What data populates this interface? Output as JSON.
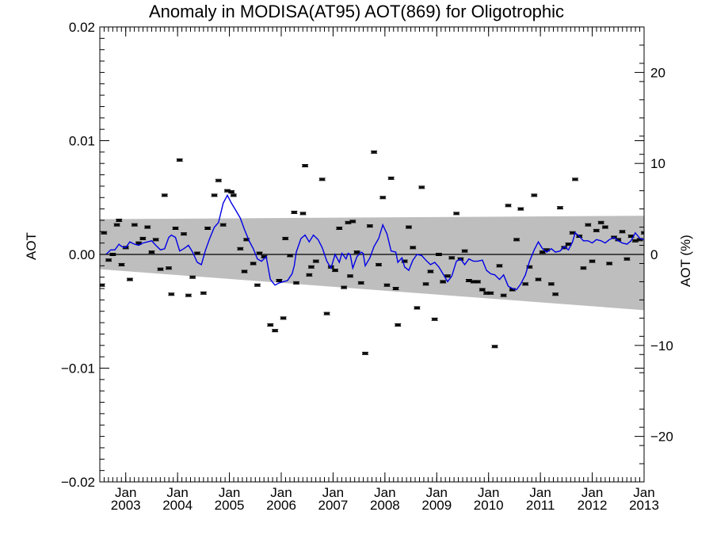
{
  "chart_data": {
    "type": "line",
    "title": "Anomaly in MODISA(AT95) AOT(869) for Oligotrophic",
    "ylabel": "AOT",
    "ylabel_right": "AOT (%)",
    "xlim": [
      2002.5,
      2013.0
    ],
    "ylim": [
      -0.02,
      0.02
    ],
    "ylim_right": [
      -25,
      25
    ],
    "y_ticks": [
      {
        "value": -0.02,
        "label": "−0.02"
      },
      {
        "value": -0.01,
        "label": "−0.01"
      },
      {
        "value": 0.0,
        "label": "0.00"
      },
      {
        "value": 0.01,
        "label": "0.01"
      },
      {
        "value": 0.02,
        "label": "0.02"
      }
    ],
    "y_right_ticks": [
      {
        "value": -20,
        "label": "−20"
      },
      {
        "value": -10,
        "label": "−10"
      },
      {
        "value": 0,
        "label": "0"
      },
      {
        "value": 10,
        "label": "10"
      },
      {
        "value": 20,
        "label": "20"
      }
    ],
    "x_ticks": [
      {
        "value": 2003.0,
        "month": "Jan",
        "year": "2003"
      },
      {
        "value": 2004.0,
        "month": "Jan",
        "year": "2004"
      },
      {
        "value": 2005.0,
        "month": "Jan",
        "year": "2005"
      },
      {
        "value": 2006.0,
        "month": "Jan",
        "year": "2006"
      },
      {
        "value": 2007.0,
        "month": "Jan",
        "year": "2007"
      },
      {
        "value": 2008.0,
        "month": "Jan",
        "year": "2008"
      },
      {
        "value": 2009.0,
        "month": "Jan",
        "year": "2009"
      },
      {
        "value": 2010.0,
        "month": "Jan",
        "year": "2010"
      },
      {
        "value": 2011.0,
        "month": "Jan",
        "year": "2011"
      },
      {
        "value": 2012.0,
        "month": "Jan",
        "year": "2012"
      },
      {
        "value": 2013.0,
        "month": "Jan",
        "year": "2013"
      }
    ],
    "band": {
      "x": [
        2002.5,
        2013.0
      ],
      "upper": [
        0.0031,
        0.0034
      ],
      "lower": [
        -0.0013,
        -0.0049
      ],
      "color": "#bebebe"
    },
    "zero_line": 0.0,
    "series": [
      {
        "style": "points-with-errorbars",
        "color": "#000000",
        "points": [
          [
            2002.54,
            -0.0027
          ],
          [
            2002.58,
            0.0019
          ],
          [
            2002.67,
            -0.0005
          ],
          [
            2002.75,
            0.0
          ],
          [
            2002.83,
            0.0026
          ],
          [
            2002.87,
            0.003
          ],
          [
            2002.92,
            -0.0009
          ],
          [
            2003.0,
            0.0006
          ],
          [
            2003.08,
            -0.0022
          ],
          [
            2003.17,
            0.0026
          ],
          [
            2003.25,
            0.001
          ],
          [
            2003.33,
            0.0014
          ],
          [
            2003.42,
            0.0024
          ],
          [
            2003.5,
            0.0002
          ],
          [
            2003.58,
            0.0013
          ],
          [
            2003.67,
            -0.0013
          ],
          [
            2003.75,
            0.0052
          ],
          [
            2003.83,
            -0.0012
          ],
          [
            2003.88,
            -0.0035
          ],
          [
            2003.96,
            0.0023
          ],
          [
            2004.04,
            0.0083
          ],
          [
            2004.12,
            0.0018
          ],
          [
            2004.21,
            -0.0036
          ],
          [
            2004.29,
            -0.002
          ],
          [
            2004.38,
            0.0001
          ],
          [
            2004.5,
            -0.0034
          ],
          [
            2004.58,
            0.0023
          ],
          [
            2004.71,
            0.0052
          ],
          [
            2004.79,
            0.0065
          ],
          [
            2004.88,
            0.0026
          ],
          [
            2004.96,
            0.0056
          ],
          [
            2005.04,
            0.0055
          ],
          [
            2005.08,
            0.0052
          ],
          [
            2005.21,
            0.0005
          ],
          [
            2005.29,
            -0.0015
          ],
          [
            2005.33,
            0.0013
          ],
          [
            2005.46,
            -0.0008
          ],
          [
            2005.54,
            -0.0027
          ],
          [
            2005.58,
            0.0001
          ],
          [
            2005.67,
            -0.0002
          ],
          [
            2005.79,
            -0.0062
          ],
          [
            2005.88,
            -0.0067
          ],
          [
            2005.96,
            -0.0023
          ],
          [
            2006.04,
            -0.0056
          ],
          [
            2006.08,
            0.0014
          ],
          [
            2006.17,
            -0.0001
          ],
          [
            2006.25,
            0.0037
          ],
          [
            2006.29,
            -0.0025
          ],
          [
            2006.42,
            0.0036
          ],
          [
            2006.46,
            0.0078
          ],
          [
            2006.54,
            -0.0018
          ],
          [
            2006.58,
            -0.0011
          ],
          [
            2006.67,
            -0.0006
          ],
          [
            2006.79,
            0.0066
          ],
          [
            2006.88,
            -0.0052
          ],
          [
            2006.96,
            -0.0011
          ],
          [
            2007.04,
            -0.0014
          ],
          [
            2007.12,
            0.0023
          ],
          [
            2007.21,
            -0.0029
          ],
          [
            2007.29,
            0.0028
          ],
          [
            2007.38,
            0.0029
          ],
          [
            2007.46,
            0.0002
          ],
          [
            2007.33,
            -0.0019
          ],
          [
            2007.54,
            -0.0025
          ],
          [
            2007.62,
            -0.0087
          ],
          [
            2007.71,
            0.0025
          ],
          [
            2007.79,
            0.009
          ],
          [
            2007.88,
            -0.0009
          ],
          [
            2007.96,
            0.005
          ],
          [
            2008.04,
            -0.0027
          ],
          [
            2008.12,
            0.0067
          ],
          [
            2008.21,
            -0.003
          ],
          [
            2008.25,
            -0.0062
          ],
          [
            2008.38,
            -0.0006
          ],
          [
            2008.46,
            0.0024
          ],
          [
            2008.54,
            0.0006
          ],
          [
            2008.62,
            -0.0047
          ],
          [
            2008.71,
            0.0059
          ],
          [
            2008.79,
            -0.0026
          ],
          [
            2008.88,
            -0.0015
          ],
          [
            2008.96,
            -0.0057
          ],
          [
            2009.04,
            0.0
          ],
          [
            2009.12,
            -0.0024
          ],
          [
            2009.21,
            -0.0019
          ],
          [
            2009.29,
            -0.0003
          ],
          [
            2009.38,
            0.0036
          ],
          [
            2009.46,
            -0.0004
          ],
          [
            2009.54,
            0.0003
          ],
          [
            2009.62,
            -0.0023
          ],
          [
            2009.71,
            -0.0024
          ],
          [
            2009.79,
            -0.0024
          ],
          [
            2009.88,
            -0.0031
          ],
          [
            2009.96,
            -0.0034
          ],
          [
            2010.04,
            -0.0034
          ],
          [
            2010.12,
            -0.0081
          ],
          [
            2010.21,
            -0.001
          ],
          [
            2010.29,
            -0.0036
          ],
          [
            2010.38,
            0.0043
          ],
          [
            2010.46,
            -0.0031
          ],
          [
            2010.54,
            0.0013
          ],
          [
            2010.62,
            0.004
          ],
          [
            2010.71,
            -0.0026
          ],
          [
            2010.79,
            -0.0011
          ],
          [
            2010.88,
            0.0052
          ],
          [
            2010.96,
            -0.0022
          ],
          [
            2011.04,
            0.0002
          ],
          [
            2011.12,
            0.0004
          ],
          [
            2011.21,
            -0.0026
          ],
          [
            2011.29,
            -0.0035
          ],
          [
            2011.38,
            0.0041
          ],
          [
            2011.46,
            0.0006
          ],
          [
            2011.54,
            0.0009
          ],
          [
            2011.62,
            0.0019
          ],
          [
            2011.67,
            0.0066
          ],
          [
            2011.75,
            0.0016
          ],
          [
            2011.83,
            -0.0012
          ],
          [
            2011.92,
            0.0026
          ],
          [
            2012.0,
            -0.0006
          ],
          [
            2012.08,
            0.0021
          ],
          [
            2012.17,
            0.0028
          ],
          [
            2012.25,
            0.0024
          ],
          [
            2012.33,
            -0.0008
          ],
          [
            2012.42,
            0.0015
          ],
          [
            2012.5,
            0.0013
          ],
          [
            2012.58,
            0.002
          ],
          [
            2012.67,
            -0.0004
          ],
          [
            2012.75,
            0.0016
          ],
          [
            2012.83,
            0.0012
          ],
          [
            2012.92,
            0.0013
          ],
          [
            2013.0,
            0.0019
          ]
        ]
      },
      {
        "style": "line",
        "color": "#0000e6",
        "points": [
          [
            2002.62,
            0.0
          ],
          [
            2002.71,
            0.0004
          ],
          [
            2002.79,
            0.0004
          ],
          [
            2002.87,
            0.0009
          ],
          [
            2002.92,
            0.0007
          ],
          [
            2003.0,
            0.0006
          ],
          [
            2003.08,
            0.0011
          ],
          [
            2003.17,
            0.0009
          ],
          [
            2003.25,
            0.0008
          ],
          [
            2003.33,
            0.001
          ],
          [
            2003.42,
            0.0011
          ],
          [
            2003.5,
            0.0012
          ],
          [
            2003.58,
            0.0008
          ],
          [
            2003.67,
            0.0004
          ],
          [
            2003.75,
            0.0005
          ],
          [
            2003.83,
            0.0015
          ],
          [
            2003.88,
            0.0017
          ],
          [
            2003.96,
            0.0015
          ],
          [
            2004.04,
            0.0003
          ],
          [
            2004.12,
            0.0005
          ],
          [
            2004.21,
            0.0008
          ],
          [
            2004.29,
            0.0002
          ],
          [
            2004.38,
            -0.0007
          ],
          [
            2004.46,
            -0.0009
          ],
          [
            2004.54,
            0.0004
          ],
          [
            2004.62,
            0.0014
          ],
          [
            2004.71,
            0.0024
          ],
          [
            2004.79,
            0.0028
          ],
          [
            2004.88,
            0.0045
          ],
          [
            2004.96,
            0.0052
          ],
          [
            2005.04,
            0.0045
          ],
          [
            2005.12,
            0.0039
          ],
          [
            2005.21,
            0.0032
          ],
          [
            2005.29,
            0.0022
          ],
          [
            2005.38,
            0.0012
          ],
          [
            2005.46,
            0.0005
          ],
          [
            2005.54,
            -0.0004
          ],
          [
            2005.62,
            -0.0006
          ],
          [
            2005.71,
            -0.0002
          ],
          [
            2005.79,
            -0.0022
          ],
          [
            2005.88,
            -0.0027
          ],
          [
            2005.96,
            -0.0025
          ],
          [
            2006.04,
            -0.0024
          ],
          [
            2006.12,
            -0.0023
          ],
          [
            2006.21,
            -0.0017
          ],
          [
            2006.25,
            -0.001
          ],
          [
            2006.29,
            0.0002
          ],
          [
            2006.38,
            0.0014
          ],
          [
            2006.46,
            0.0017
          ],
          [
            2006.54,
            0.0011
          ],
          [
            2006.62,
            0.0017
          ],
          [
            2006.71,
            0.0013
          ],
          [
            2006.79,
            0.0006
          ],
          [
            2006.88,
            -0.0006
          ],
          [
            2006.96,
            -0.0012
          ],
          [
            2007.04,
            0.0
          ],
          [
            2007.12,
            -0.0007
          ],
          [
            2007.17,
            0.0001
          ],
          [
            2007.25,
            -0.0004
          ],
          [
            2007.29,
            0.0001
          ],
          [
            2007.33,
            0.0
          ],
          [
            2007.38,
            -0.0012
          ],
          [
            2007.46,
            -0.0002
          ],
          [
            2007.54,
            0.0002
          ],
          [
            2007.58,
            0.0001
          ],
          [
            2007.62,
            -0.001
          ],
          [
            2007.71,
            -0.0003
          ],
          [
            2007.79,
            0.0007
          ],
          [
            2007.88,
            0.0014
          ],
          [
            2007.96,
            0.0026
          ],
          [
            2008.04,
            0.0018
          ],
          [
            2008.12,
            0.0003
          ],
          [
            2008.21,
            0.0002
          ],
          [
            2008.25,
            -0.0007
          ],
          [
            2008.33,
            -0.0003
          ],
          [
            2008.38,
            -0.0011
          ],
          [
            2008.46,
            -0.0014
          ],
          [
            2008.54,
            -0.0005
          ],
          [
            2008.62,
            0.0
          ],
          [
            2008.71,
            -0.0001
          ],
          [
            2008.79,
            -0.0005
          ],
          [
            2008.88,
            -0.0009
          ],
          [
            2008.96,
            -0.0007
          ],
          [
            2009.04,
            -0.0011
          ],
          [
            2009.12,
            -0.0017
          ],
          [
            2009.21,
            -0.0024
          ],
          [
            2009.29,
            -0.0019
          ],
          [
            2009.38,
            -0.0006
          ],
          [
            2009.46,
            -0.0004
          ],
          [
            2009.54,
            -0.0009
          ],
          [
            2009.62,
            -0.0004
          ],
          [
            2009.71,
            -0.0006
          ],
          [
            2009.79,
            -0.0006
          ],
          [
            2009.88,
            -0.0005
          ],
          [
            2009.96,
            -0.0014
          ],
          [
            2010.04,
            -0.0017
          ],
          [
            2010.12,
            -0.0018
          ],
          [
            2010.21,
            -0.0022
          ],
          [
            2010.29,
            -0.0018
          ],
          [
            2010.38,
            -0.0028
          ],
          [
            2010.46,
            -0.003
          ],
          [
            2010.54,
            -0.0031
          ],
          [
            2010.62,
            -0.0026
          ],
          [
            2010.71,
            -0.0018
          ],
          [
            2010.79,
            -0.0006
          ],
          [
            2010.88,
            0.0004
          ],
          [
            2010.96,
            0.0011
          ],
          [
            2011.04,
            0.0005
          ],
          [
            2011.12,
            0.0002
          ],
          [
            2011.21,
            0.0005
          ],
          [
            2011.29,
            0.0002
          ],
          [
            2011.38,
            0.0003
          ],
          [
            2011.46,
            0.0007
          ],
          [
            2011.54,
            0.0004
          ],
          [
            2011.62,
            0.0011
          ],
          [
            2011.67,
            0.0019
          ],
          [
            2011.75,
            0.0016
          ],
          [
            2011.83,
            0.0012
          ],
          [
            2011.92,
            0.0012
          ],
          [
            2012.0,
            0.001
          ],
          [
            2012.08,
            0.0013
          ],
          [
            2012.17,
            0.0012
          ],
          [
            2012.25,
            0.001
          ],
          [
            2012.33,
            0.0013
          ],
          [
            2012.42,
            0.0015
          ],
          [
            2012.5,
            0.0012
          ],
          [
            2012.58,
            0.001
          ],
          [
            2012.67,
            0.0009
          ],
          [
            2012.75,
            0.0012
          ],
          [
            2012.83,
            0.0019
          ],
          [
            2012.92,
            0.0014
          ],
          [
            2013.0,
            0.0013
          ]
        ]
      }
    ]
  }
}
